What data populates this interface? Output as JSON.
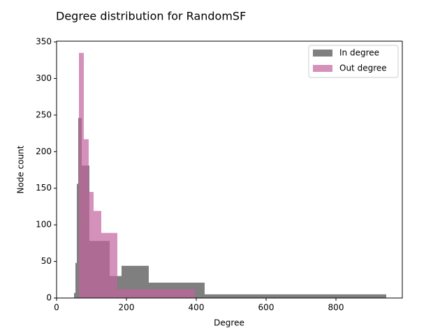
{
  "chart_data": {
    "type": "histogram",
    "title": "Degree distribution for RandomSF",
    "x_label": "Degree",
    "y_label": "Node count",
    "xlim": [
      0,
      990
    ],
    "ylim": [
      0,
      351
    ],
    "xticks": [
      0,
      200,
      400,
      600,
      800
    ],
    "yticks": [
      0,
      50,
      100,
      150,
      200,
      250,
      300,
      350
    ],
    "legend": "upper right",
    "series": [
      {
        "name": "In degree",
        "color": "#7f7f7f",
        "bins": [
          50,
          54,
          58,
          62,
          72,
          94,
          152,
          186,
          264,
          424,
          944
        ],
        "values": [
          7,
          48,
          156,
          246,
          181,
          78,
          30,
          44,
          21,
          5
        ]
      },
      {
        "name": "Out degree",
        "color": "#c2649c",
        "bins": [
          64,
          78,
          92,
          106,
          128,
          174,
          396
        ],
        "values": [
          335,
          217,
          145,
          119,
          89,
          12
        ]
      }
    ]
  }
}
